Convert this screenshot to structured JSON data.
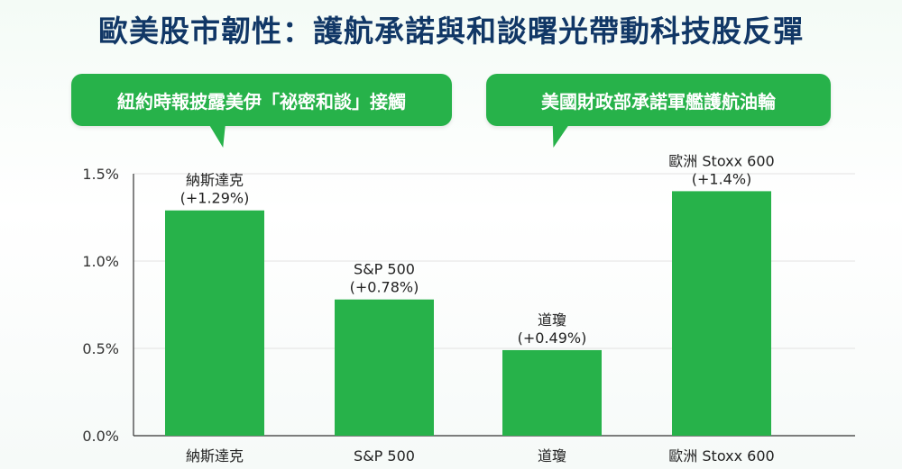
{
  "header": {
    "title": "歐美股市韌性：護航承諾與和談曙光帶動科技股反彈"
  },
  "callouts": [
    {
      "text": "紐約時報披露美伊「祕密和談」接觸"
    },
    {
      "text": "美國財政部承諾軍艦護航油輪"
    }
  ],
  "colors": {
    "bar": "#27b24a",
    "title": "#113766",
    "callout": "#27b24a"
  },
  "chart_data": {
    "type": "bar",
    "title": "",
    "xlabel": "",
    "ylabel": "",
    "ylim": [
      0,
      1.5
    ],
    "y_ticks": [
      "0.0%",
      "0.5%",
      "1.0%",
      "1.5%"
    ],
    "y_tick_values": [
      0,
      0.5,
      1.0,
      1.5
    ],
    "grid": true,
    "legend": "none",
    "categories": [
      "納斯達克",
      "S&P 500",
      "道瓊",
      "歐洲 Stoxx 600"
    ],
    "values": [
      1.29,
      0.78,
      0.49,
      1.4
    ],
    "data_labels": [
      [
        "納斯達克",
        "(+1.29%)"
      ],
      [
        "S&P 500",
        "(+0.78%)"
      ],
      [
        "道瓊",
        "(+0.49%)"
      ],
      [
        "歐洲 Stoxx 600",
        "(+1.4%)"
      ]
    ]
  }
}
